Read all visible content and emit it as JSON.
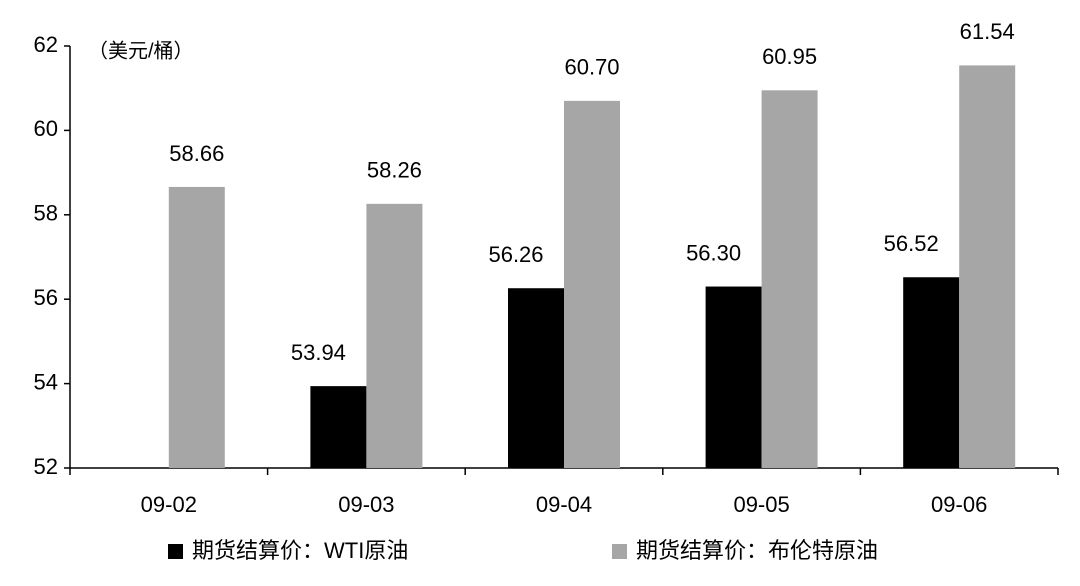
{
  "chart_data": {
    "type": "bar",
    "unit_note": "（美元/桶）",
    "categories": [
      "09-02",
      "09-03",
      "09-04",
      "09-05",
      "09-06"
    ],
    "series": [
      {
        "name": "期货结算价：WTI原油",
        "color": "#000000",
        "values": [
          null,
          53.94,
          56.26,
          56.3,
          56.52
        ],
        "value_labels": [
          null,
          "53.94",
          "56.26",
          "56.30",
          "56.52"
        ]
      },
      {
        "name": "期货结算价：布伦特原油",
        "color": "#a6a6a6",
        "values": [
          58.66,
          58.26,
          60.7,
          60.95,
          61.54
        ],
        "value_labels": [
          "58.66",
          "58.26",
          "60.70",
          "60.95",
          "61.54"
        ]
      }
    ],
    "ylim": [
      52,
      62
    ],
    "yticks": [
      52,
      54,
      56,
      58,
      60,
      62
    ],
    "grid": false,
    "legend": "bottom"
  }
}
